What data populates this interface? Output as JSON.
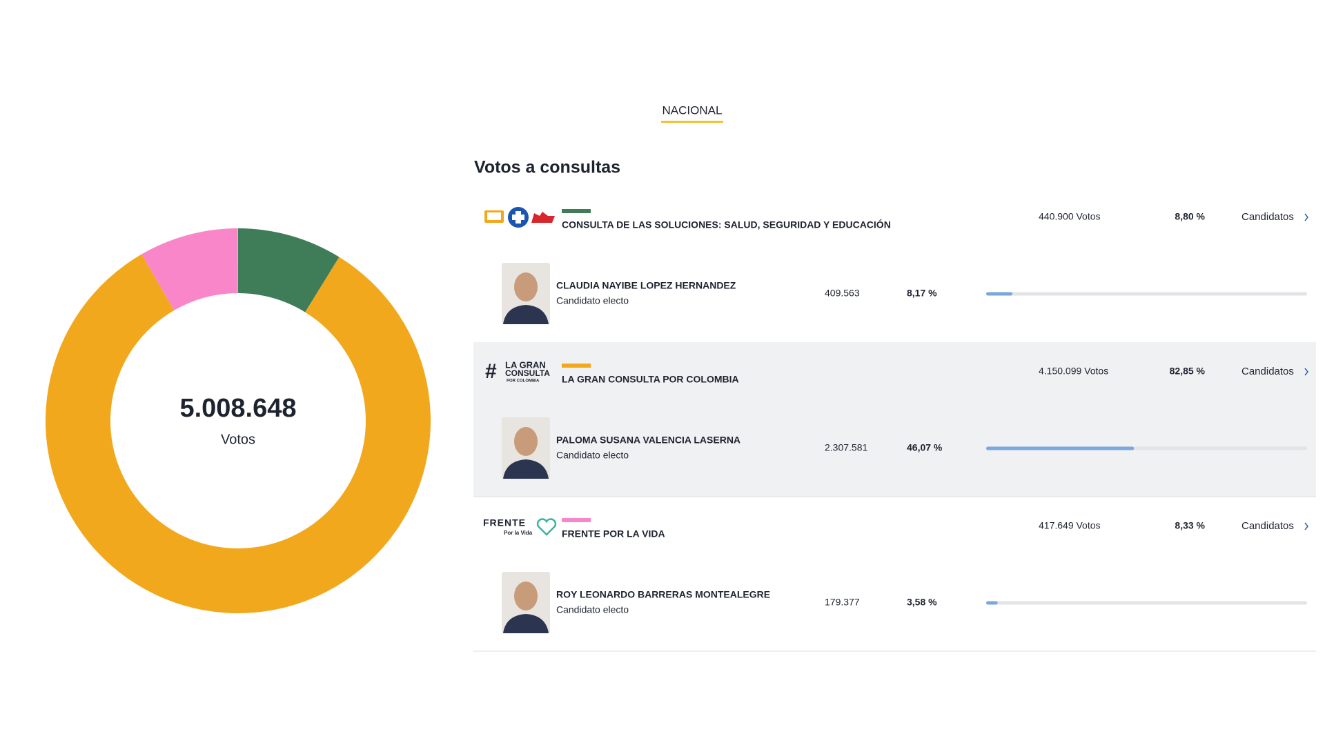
{
  "tab": "NACIONAL",
  "title": "Votos a consultas",
  "donut": {
    "total": "5.008.648",
    "caption": "Votos"
  },
  "consultas": [
    {
      "name": "CONSULTA DE LAS SOLUCIONES: SALUD, SEGURIDAD Y EDUCACIÓN",
      "color": "#3f7d58",
      "votes": "440.900 Votos",
      "percent": 8.8,
      "percent_label": "8,80 %",
      "link": "Candidatos",
      "candidate": {
        "name": "CLAUDIA NAYIBE LOPEZ HERNANDEZ",
        "status": "Candidato electo",
        "votes": "409.563",
        "percent": 8.17,
        "percent_label": "8,17 %"
      }
    },
    {
      "name": "LA GRAN CONSULTA POR COLOMBIA",
      "color": "#f2a81d",
      "logo_text": [
        "#",
        "LA GRAN",
        "CONSULTA",
        "POR COLOMBIA"
      ],
      "votes": "4.150.099 Votos",
      "percent": 82.85,
      "percent_label": "82,85 %",
      "link": "Candidatos",
      "candidate": {
        "name": "PALOMA SUSANA VALENCIA LASERNA",
        "status": "Candidato electo",
        "votes": "2.307.581",
        "percent": 46.07,
        "percent_label": "46,07 %"
      }
    },
    {
      "name": "FRENTE POR LA VIDA",
      "color": "#f986c9",
      "logo_text": [
        "FRENTE",
        "Por la Vida"
      ],
      "votes": "417.649 Votos",
      "percent": 8.33,
      "percent_label": "8,33 %",
      "link": "Candidatos",
      "candidate": {
        "name": "ROY LEONARDO BARRERAS MONTEALEGRE",
        "status": "Candidato electo",
        "votes": "179.377",
        "percent": 3.58,
        "percent_label": "3,58 %"
      }
    }
  ]
}
